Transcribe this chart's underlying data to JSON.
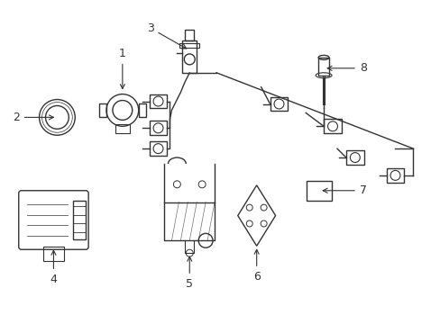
{
  "background_color": "#ffffff",
  "line_color": "#333333",
  "line_width": 1.0,
  "figsize": [
    4.89,
    3.6
  ],
  "dpi": 100
}
